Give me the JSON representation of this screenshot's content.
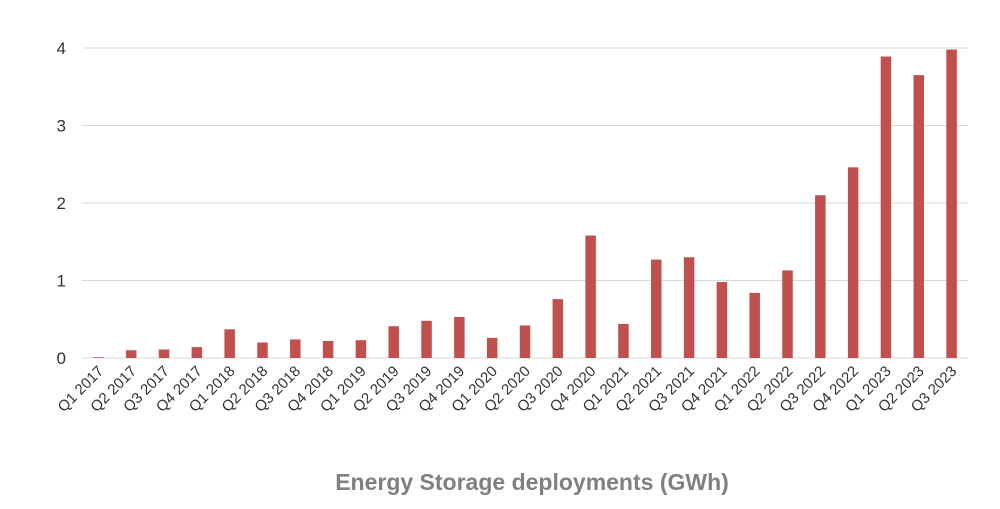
{
  "chart_data": {
    "type": "bar",
    "title": "",
    "xlabel": "Energy Storage deployments (GWh)",
    "ylabel": "",
    "ylim": [
      0,
      4
    ],
    "yticks": [
      "0",
      "1",
      "2",
      "3",
      "4"
    ],
    "grid": true,
    "legend": "none",
    "categories": [
      "Q1 2017",
      "Q2 2017",
      "Q3 2017",
      "Q4 2017",
      "Q1 2018",
      "Q2 2018",
      "Q3 2018",
      "Q4 2018",
      "Q1 2019",
      "Q2 2019",
      "Q3 2019",
      "Q4 2019",
      "Q1 2020",
      "Q2 2020",
      "Q3 2020",
      "Q4 2020",
      "Q1 2021",
      "Q2 2021",
      "Q3 2021",
      "Q4 2021",
      "Q1 2022",
      "Q2 2022",
      "Q3 2022",
      "Q4 2022",
      "Q1 2023",
      "Q2 2023",
      "Q3 2023"
    ],
    "values": [
      0.01,
      0.1,
      0.11,
      0.14,
      0.37,
      0.2,
      0.24,
      0.22,
      0.23,
      0.41,
      0.48,
      0.53,
      0.26,
      0.42,
      0.76,
      1.58,
      0.44,
      1.27,
      1.3,
      0.98,
      0.84,
      1.13,
      2.1,
      2.46,
      3.89,
      3.65,
      3.98
    ],
    "colors": {
      "bar": "#C0504D",
      "grid": "#D9D9D9",
      "tick_text": "#333333",
      "axis_title": "#808080"
    }
  }
}
